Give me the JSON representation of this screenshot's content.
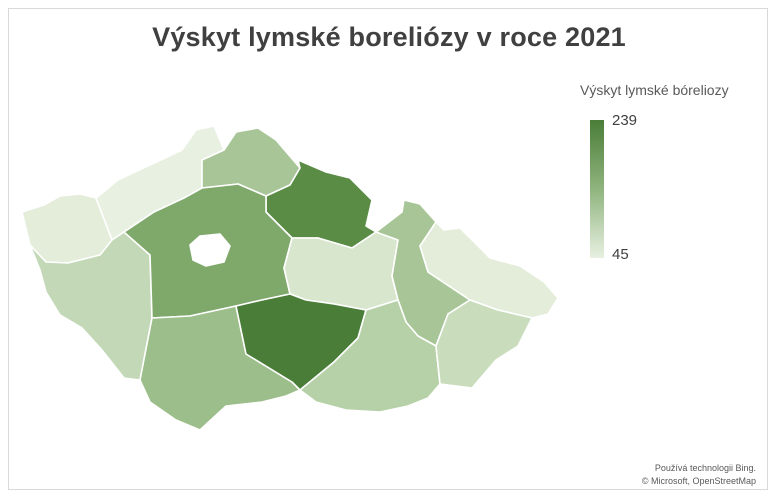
{
  "title": "Výskyt lymské boreliózy v roce 2021",
  "legend": {
    "title": "Výskyt lymské bóreliozy",
    "max_label": "239",
    "min_label": "45",
    "color_max": "#4a7d37",
    "color_min": "#e8f0e1"
  },
  "credits": {
    "line1": "Používá technologii Bing.",
    "line2": "© Microsoft, OpenStreetMap"
  },
  "regions": [
    {
      "id": "karlovarsky",
      "color": "#e3edda"
    },
    {
      "id": "ustecky",
      "color": "#e8f0e1"
    },
    {
      "id": "liberecky",
      "color": "#a7c597"
    },
    {
      "id": "kralovehradecky",
      "color": "#5a8c45"
    },
    {
      "id": "plzensky",
      "color": "#c2d8b6"
    },
    {
      "id": "stredocesky",
      "color": "#7fa86b"
    },
    {
      "id": "praha",
      "color": "#ffffff"
    },
    {
      "id": "pardubicky",
      "color": "#d8e6cd"
    },
    {
      "id": "olomoucky",
      "color": "#a7c597"
    },
    {
      "id": "moravskoslezsky",
      "color": "#e3edda"
    },
    {
      "id": "jihocesky",
      "color": "#9cbe8a"
    },
    {
      "id": "vysocina",
      "color": "#4a7d37"
    },
    {
      "id": "jihomoravsky",
      "color": "#b6d1a7"
    },
    {
      "id": "zlinsky",
      "color": "#c9ddbd"
    }
  ]
}
